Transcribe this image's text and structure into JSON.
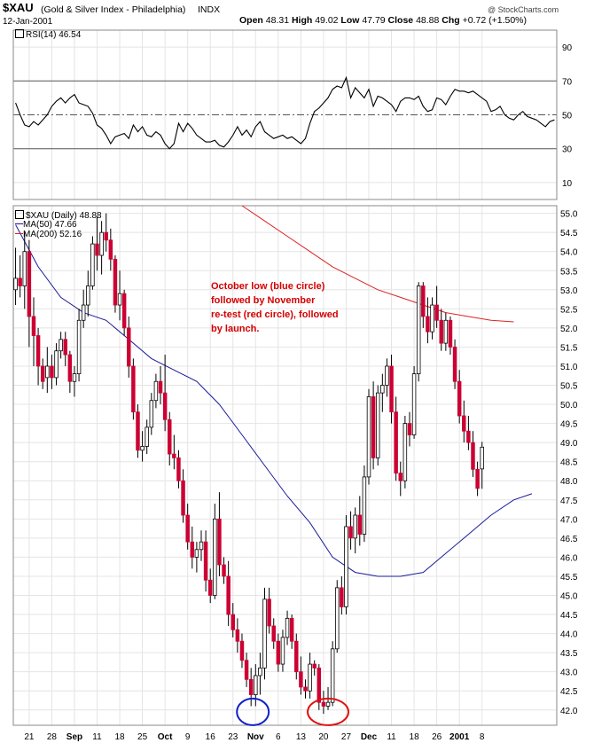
{
  "header": {
    "symbol": "$XAU",
    "name": "(Gold & Silver Index - Philadelphia)",
    "exchange": "INDX",
    "date": "12-Jan-2001",
    "copyright": "@ StockCharts.com",
    "quote": {
      "open_label": "Open",
      "open": "48.31",
      "high_label": "High",
      "high": "49.02",
      "low_label": "Low",
      "low": "47.79",
      "close_label": "Close",
      "close": "48.88",
      "chg_label": "Chg",
      "chg": "+0.72 (+1.50%)"
    }
  },
  "rsi_panel": {
    "legend": "RSI(14)",
    "value": "46.54"
  },
  "price_panel": {
    "legend_main": "$XAU (Daily)",
    "legend_main_value": "48.88",
    "legend_ma50": "MA(50)",
    "legend_ma50_value": "47.66",
    "legend_ma200": "MA(200)",
    "legend_ma200_value": "52.16"
  },
  "annotation": {
    "line1": "October low (blue circle)",
    "line2": "followed by November",
    "line3": "re-test (red circle), followed",
    "line4": "by launch."
  },
  "colors": {
    "up": "#ffffff",
    "down": "#cc0033",
    "ma50": "#1a1a9c",
    "ma200": "#dd2222",
    "rsi": "#000000",
    "circle_blue": "#1020c8",
    "circle_red": "#e01010",
    "grid": "#e4e4e4",
    "annotation": "#d40000"
  },
  "chart_data": [
    {
      "type": "line",
      "name": "RSI(14)",
      "ylim": [
        0,
        100
      ],
      "yticks": [
        10,
        30,
        50,
        70,
        90
      ],
      "reference_lines": [
        30,
        50,
        70
      ],
      "x": [
        0,
        1,
        2,
        3,
        4,
        5,
        6,
        7,
        8,
        9,
        10,
        11,
        12,
        13,
        14,
        15,
        16,
        17,
        18,
        19,
        20,
        21,
        22,
        23,
        24,
        25,
        26,
        27,
        28,
        29,
        30,
        31,
        32,
        33,
        34,
        35,
        36,
        37,
        38,
        39,
        40,
        41,
        42,
        43,
        44,
        45,
        46,
        47,
        48,
        49,
        50,
        51,
        52,
        53,
        54,
        55,
        56,
        57,
        58,
        59,
        60,
        61,
        62,
        63,
        64,
        65,
        66,
        67,
        68,
        69,
        70,
        71,
        72,
        73,
        74,
        75,
        76,
        77,
        78,
        79,
        80,
        81,
        82,
        83,
        84,
        85,
        86,
        87,
        88,
        89,
        90,
        91,
        92,
        93,
        94,
        95,
        96,
        97,
        98,
        99,
        100,
        101,
        102,
        103,
        104,
        105,
        106,
        107,
        108,
        109,
        110,
        111,
        112,
        113,
        114,
        115,
        116,
        117,
        118,
        119
      ],
      "values": [
        57,
        50,
        44,
        43,
        46,
        44,
        47,
        50,
        55,
        58,
        60,
        57,
        60,
        62,
        57,
        56,
        55,
        51,
        44,
        42,
        38,
        33,
        37,
        38,
        39,
        36,
        44,
        40,
        43,
        38,
        37,
        40,
        38,
        33,
        30,
        33,
        45,
        40,
        45,
        42,
        38,
        36,
        34,
        34,
        35,
        32,
        31,
        34,
        38,
        43,
        38,
        41,
        37,
        43,
        46,
        40,
        38,
        36,
        37,
        38,
        36,
        37,
        35,
        33,
        36,
        45,
        52,
        54,
        57,
        60,
        65,
        67,
        66,
        72,
        60,
        66,
        63,
        60,
        65,
        55,
        61,
        60,
        58,
        56,
        52,
        58,
        60,
        60,
        59,
        61,
        55,
        52,
        53,
        60,
        59,
        56,
        61,
        65,
        64,
        64,
        63,
        64,
        62,
        60,
        58,
        52,
        53,
        55,
        50,
        48,
        47,
        50,
        52,
        49,
        48,
        47,
        45,
        43,
        46,
        47
      ],
      "labels": [
        "RSI(14)"
      ]
    },
    {
      "type": "candlestick",
      "name": "$XAU (Daily)",
      "ylim": [
        41.6,
        55.2
      ],
      "yticks": [
        42.0,
        42.5,
        43.0,
        43.5,
        44.0,
        44.5,
        45.0,
        45.5,
        46.0,
        46.5,
        47.0,
        47.5,
        48.0,
        48.5,
        49.0,
        49.5,
        50.0,
        50.5,
        51.0,
        51.5,
        52.0,
        52.5,
        53.0,
        53.5,
        54.0,
        54.5,
        55.0
      ],
      "xlabels": [
        "21",
        "28",
        "Sep",
        "11",
        "18",
        "25",
        "Oct",
        "9",
        "16",
        "23",
        "Nov",
        "6",
        "13",
        "20",
        "27",
        "Dec",
        "11",
        "18",
        "26",
        "2001",
        "8"
      ],
      "xlabel_index": [
        3,
        8,
        13,
        18,
        23,
        28,
        33,
        38,
        43,
        48,
        53,
        58,
        63,
        68,
        73,
        78,
        83,
        88,
        93,
        98,
        103
      ],
      "candles": [
        [
          53.0,
          54.1,
          52.6,
          53.3
        ],
        [
          53.3,
          53.9,
          52.8,
          53.1
        ],
        [
          53.1,
          54.5,
          52.5,
          54.0
        ],
        [
          54.0,
          54.3,
          51.5,
          52.3
        ],
        [
          52.3,
          52.8,
          51.0,
          51.8
        ],
        [
          51.8,
          52.0,
          50.5,
          51.0
        ],
        [
          51.0,
          51.2,
          50.4,
          50.6
        ],
        [
          50.7,
          51.5,
          50.3,
          51.0
        ],
        [
          51.0,
          51.3,
          50.4,
          50.7
        ],
        [
          50.7,
          51.6,
          50.5,
          51.4
        ],
        [
          51.4,
          51.9,
          51.2,
          51.7
        ],
        [
          51.7,
          51.9,
          51.0,
          51.3
        ],
        [
          51.3,
          51.4,
          50.3,
          50.6
        ],
        [
          50.6,
          51.0,
          50.2,
          50.8
        ],
        [
          50.8,
          52.5,
          50.6,
          52.2
        ],
        [
          52.2,
          53.0,
          52.0,
          52.6
        ],
        [
          52.6,
          53.5,
          52.3,
          53.1
        ],
        [
          53.1,
          54.4,
          53.0,
          54.2
        ],
        [
          54.2,
          54.9,
          53.5,
          53.9
        ],
        [
          53.9,
          54.8,
          53.4,
          54.5
        ],
        [
          54.5,
          55.0,
          54.0,
          54.3
        ],
        [
          54.3,
          54.6,
          53.5,
          53.8
        ],
        [
          53.8,
          53.9,
          52.4,
          52.6
        ],
        [
          52.6,
          53.5,
          52.2,
          52.9
        ],
        [
          52.9,
          53.0,
          51.8,
          52.0
        ],
        [
          52.0,
          52.3,
          50.7,
          51.0
        ],
        [
          51.0,
          51.2,
          49.6,
          49.8
        ],
        [
          49.8,
          50.0,
          48.6,
          48.8
        ],
        [
          48.8,
          49.3,
          48.5,
          48.9
        ],
        [
          48.9,
          49.6,
          48.7,
          49.4
        ],
        [
          49.4,
          50.3,
          49.2,
          50.1
        ],
        [
          50.1,
          50.8,
          49.9,
          50.6
        ],
        [
          50.6,
          51.0,
          50.0,
          50.3
        ],
        [
          50.3,
          51.3,
          49.3,
          49.6
        ],
        [
          49.6,
          49.8,
          48.4,
          48.7
        ],
        [
          48.7,
          49.2,
          48.3,
          48.6
        ],
        [
          48.6,
          48.8,
          47.8,
          48.0
        ],
        [
          48.0,
          48.3,
          46.9,
          47.1
        ],
        [
          47.1,
          47.4,
          46.2,
          46.4
        ],
        [
          46.4,
          46.8,
          45.7,
          46.0
        ],
        [
          46.0,
          46.4,
          45.6,
          46.2
        ],
        [
          46.2,
          46.7,
          45.9,
          46.4
        ],
        [
          46.4,
          46.7,
          45.1,
          45.4
        ],
        [
          45.4,
          45.7,
          44.8,
          45.0
        ],
        [
          45.0,
          47.4,
          44.9,
          47.0
        ],
        [
          47.0,
          47.7,
          45.5,
          45.8
        ],
        [
          45.8,
          46.0,
          45.3,
          45.5
        ],
        [
          45.5,
          45.9,
          44.2,
          44.5
        ],
        [
          44.5,
          44.8,
          43.9,
          44.1
        ],
        [
          44.1,
          44.4,
          43.5,
          43.8
        ],
        [
          43.8,
          44.0,
          43.1,
          43.3
        ],
        [
          43.3,
          43.5,
          42.6,
          42.8
        ],
        [
          42.8,
          43.1,
          42.1,
          42.4
        ],
        [
          42.4,
          43.2,
          42.1,
          42.9
        ],
        [
          42.9,
          43.5,
          42.4,
          43.1
        ],
        [
          43.1,
          45.2,
          42.8,
          44.9
        ],
        [
          44.9,
          45.2,
          44.0,
          44.2
        ],
        [
          44.2,
          44.4,
          43.6,
          43.8
        ],
        [
          43.8,
          44.0,
          43.0,
          43.2
        ],
        [
          43.2,
          44.1,
          43.0,
          43.9
        ],
        [
          43.9,
          44.6,
          43.7,
          44.4
        ],
        [
          44.4,
          44.5,
          43.6,
          43.8
        ],
        [
          43.8,
          44.0,
          42.8,
          43.0
        ],
        [
          43.0,
          43.4,
          42.4,
          42.6
        ],
        [
          42.6,
          42.8,
          42.3,
          42.5
        ],
        [
          42.5,
          43.5,
          42.3,
          43.2
        ],
        [
          43.2,
          43.3,
          42.9,
          43.1
        ],
        [
          43.1,
          43.2,
          42.0,
          42.2
        ],
        [
          42.2,
          42.5,
          41.9,
          42.1
        ],
        [
          42.1,
          42.6,
          42.0,
          42.2
        ],
        [
          42.2,
          43.8,
          42.1,
          43.6
        ],
        [
          43.6,
          45.4,
          43.5,
          45.2
        ],
        [
          45.2,
          45.5,
          44.5,
          44.7
        ],
        [
          44.7,
          47.1,
          44.5,
          46.8
        ],
        [
          46.8,
          47.2,
          46.2,
          46.5
        ],
        [
          46.5,
          47.3,
          46.1,
          47.1
        ],
        [
          47.1,
          47.6,
          46.3,
          46.6
        ],
        [
          46.6,
          48.4,
          46.4,
          48.1
        ],
        [
          48.1,
          50.4,
          47.9,
          50.2
        ],
        [
          50.2,
          50.6,
          48.3,
          48.6
        ],
        [
          48.6,
          50.5,
          48.4,
          50.3
        ],
        [
          50.3,
          50.8,
          49.8,
          50.5
        ],
        [
          50.5,
          51.2,
          50.2,
          51.0
        ],
        [
          51.0,
          51.3,
          49.5,
          49.8
        ],
        [
          49.8,
          50.2,
          48.0,
          48.2
        ],
        [
          48.2,
          48.5,
          47.6,
          48.0
        ],
        [
          48.0,
          49.7,
          47.8,
          49.5
        ],
        [
          49.5,
          49.8,
          48.9,
          49.2
        ],
        [
          49.2,
          51.0,
          49.1,
          50.8
        ],
        [
          50.8,
          53.2,
          50.6,
          53.1
        ],
        [
          53.1,
          53.2,
          52.0,
          52.3
        ],
        [
          52.3,
          52.8,
          51.6,
          51.9
        ],
        [
          51.9,
          52.8,
          51.7,
          52.6
        ],
        [
          52.6,
          53.1,
          52.0,
          52.2
        ],
        [
          52.2,
          52.5,
          51.4,
          51.6
        ],
        [
          51.6,
          52.4,
          51.4,
          52.2
        ],
        [
          52.2,
          52.3,
          51.3,
          51.5
        ],
        [
          51.5,
          51.7,
          50.4,
          50.6
        ],
        [
          50.6,
          50.9,
          49.5,
          49.7
        ],
        [
          49.7,
          50.1,
          49.0,
          49.3
        ],
        [
          49.3,
          49.7,
          48.8,
          49.0
        ],
        [
          49.0,
          49.3,
          48.1,
          48.3
        ],
        [
          48.3,
          48.5,
          47.6,
          47.8
        ],
        [
          48.31,
          49.02,
          47.79,
          48.88
        ]
      ],
      "ma50": [
        [
          0,
          54.7
        ],
        [
          5,
          53.6
        ],
        [
          10,
          52.8
        ],
        [
          15,
          52.4
        ],
        [
          20,
          52.2
        ],
        [
          25,
          51.7
        ],
        [
          30,
          51.2
        ],
        [
          35,
          50.9
        ],
        [
          40,
          50.6
        ],
        [
          45,
          50.0
        ],
        [
          50,
          49.2
        ],
        [
          55,
          48.4
        ],
        [
          60,
          47.6
        ],
        [
          65,
          46.9
        ],
        [
          70,
          46.0
        ],
        [
          75,
          45.6
        ],
        [
          80,
          45.5
        ],
        [
          85,
          45.5
        ],
        [
          90,
          45.6
        ],
        [
          95,
          46.1
        ],
        [
          100,
          46.6
        ],
        [
          105,
          47.1
        ],
        [
          110,
          47.5
        ],
        [
          114,
          47.66
        ]
      ],
      "ma200": [
        [
          50,
          55.2
        ],
        [
          55,
          54.8
        ],
        [
          60,
          54.4
        ],
        [
          65,
          54.0
        ],
        [
          70,
          53.6
        ],
        [
          75,
          53.3
        ],
        [
          80,
          53.0
        ],
        [
          85,
          52.8
        ],
        [
          90,
          52.6
        ],
        [
          95,
          52.4
        ],
        [
          100,
          52.3
        ],
        [
          105,
          52.2
        ],
        [
          110,
          52.16
        ]
      ]
    }
  ]
}
